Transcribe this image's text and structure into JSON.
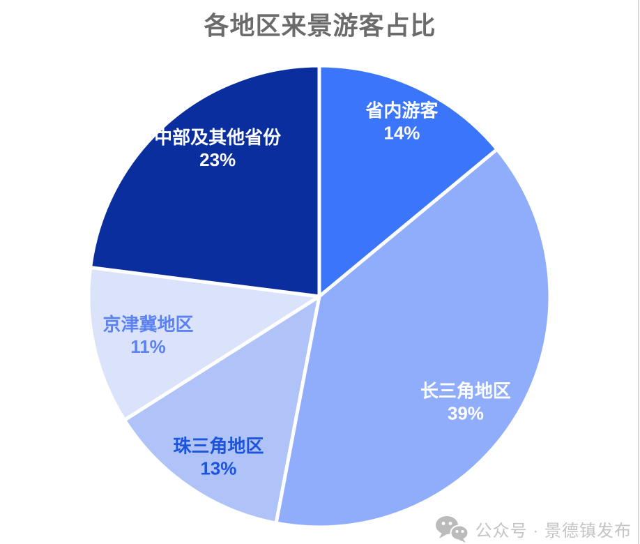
{
  "page": {
    "background": "#ffffff",
    "scroll_line_color": "#d9d9d9"
  },
  "title": {
    "text": "各地区来景游客占比",
    "color": "#6b6b6b"
  },
  "chart_data": {
    "type": "pie",
    "title": "各地区来景游客占比",
    "unit": "%",
    "direction": "clockwise",
    "start_angle_deg": 0,
    "legend": "none",
    "labels_inside": true,
    "slice_border_color": "#ffffff",
    "slices": [
      {
        "label": "省内游客",
        "value": 14,
        "display": "14%",
        "color": "#3b76fa",
        "label_color": "#ffffff"
      },
      {
        "label": "长三角地区",
        "value": 39,
        "display": "39%",
        "color": "#8fadfa",
        "label_color": "#ffffff"
      },
      {
        "label": "珠三角地区",
        "value": 13,
        "display": "13%",
        "color": "#afc3f8",
        "label_color": "#1d54de"
      },
      {
        "label": "京津冀地区",
        "value": 11,
        "display": "11%",
        "color": "#dbe3fb",
        "label_color": "#5b82f0"
      },
      {
        "label": "中部及其他省份",
        "value": 23,
        "display": "23%",
        "color": "#0a2e9e",
        "label_color": "#ffffff"
      }
    ]
  },
  "watermark": {
    "icon": "wechat-icon",
    "text": "公众号 · 景德镇发布",
    "color": "#c4c4c4",
    "icon_color": "#bbbbbb"
  }
}
